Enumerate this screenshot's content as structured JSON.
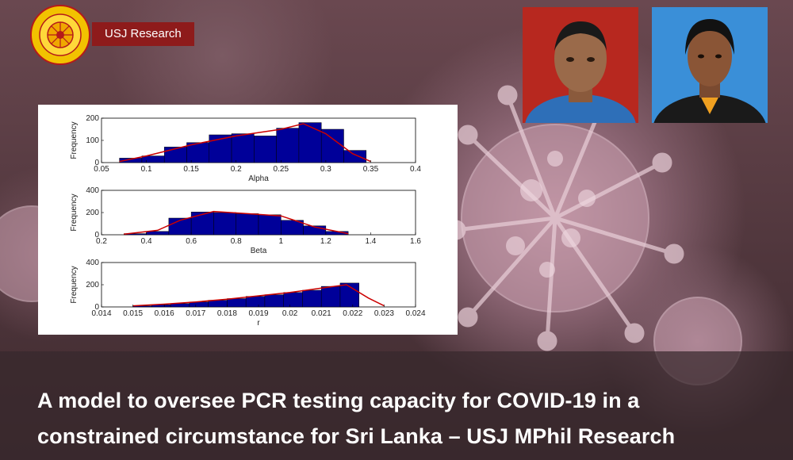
{
  "header": {
    "badge_label": "USJ Research"
  },
  "headline": {
    "line1": "A model to oversee PCR testing capacity for COVID-19 in a",
    "line2": "constrained circumstance for Sri Lanka – USJ MPhil Research"
  },
  "colors": {
    "badge_bg": "#8e1b1b",
    "bar_fill": "#000099",
    "fit_line": "#cc0000"
  },
  "chart_data": [
    {
      "type": "bar",
      "xlabel": "Alpha",
      "ylabel": "Frequency",
      "xlim": [
        0.05,
        0.4
      ],
      "ylim": [
        0,
        200
      ],
      "xticks": [
        "0.05",
        "0.1",
        "0.15",
        "0.2",
        "0.25",
        "0.3",
        "0.35",
        "0.4"
      ],
      "yticks": [
        "0",
        "100",
        "200"
      ],
      "x": [
        0.0825,
        0.1075,
        0.1325,
        0.1575,
        0.1825,
        0.2075,
        0.2325,
        0.2575,
        0.2825,
        0.3075,
        0.3325
      ],
      "values": [
        20,
        30,
        70,
        90,
        125,
        130,
        120,
        155,
        180,
        150,
        55
      ],
      "fit": {
        "x": [
          0.07,
          0.1,
          0.15,
          0.2,
          0.25,
          0.275,
          0.3,
          0.33,
          0.35
        ],
        "y": [
          5,
          30,
          80,
          120,
          150,
          175,
          130,
          40,
          5
        ]
      }
    },
    {
      "type": "bar",
      "xlabel": "Beta",
      "ylabel": "Frequency",
      "xlim": [
        0.2,
        1.6
      ],
      "ylim": [
        0,
        400
      ],
      "xticks": [
        "0.2",
        "0.4",
        "0.6",
        "0.8",
        "1",
        "1.2",
        "1.4",
        "1.6"
      ],
      "yticks": [
        "0",
        "200",
        "400"
      ],
      "x": [
        0.35,
        0.45,
        0.55,
        0.65,
        0.75,
        0.85,
        0.95,
        1.05,
        1.15,
        1.25
      ],
      "values": [
        10,
        30,
        150,
        205,
        200,
        190,
        180,
        130,
        80,
        30
      ],
      "fit": {
        "x": [
          0.3,
          0.45,
          0.55,
          0.7,
          0.85,
          1.0,
          1.15,
          1.3
        ],
        "y": [
          5,
          40,
          130,
          210,
          190,
          170,
          70,
          10
        ]
      }
    },
    {
      "type": "bar",
      "xlabel": "r",
      "ylabel": "Frequency",
      "xlim": [
        0.014,
        0.024
      ],
      "ylim": [
        0,
        400
      ],
      "xticks": [
        "0.014",
        "0.015",
        "0.016",
        "0.017",
        "0.018",
        "0.019",
        "0.02",
        "0.021",
        "0.022",
        "0.023",
        "0.024"
      ],
      "yticks": [
        "0",
        "200",
        "400"
      ],
      "x": [
        0.0153,
        0.0159,
        0.0165,
        0.0171,
        0.0177,
        0.0183,
        0.0189,
        0.0195,
        0.0201,
        0.0207,
        0.0213,
        0.0219
      ],
      "values": [
        10,
        20,
        30,
        45,
        60,
        75,
        95,
        110,
        130,
        150,
        185,
        215
      ],
      "fit": {
        "x": [
          0.015,
          0.016,
          0.017,
          0.018,
          0.019,
          0.02,
          0.021,
          0.0218,
          0.0225,
          0.023
        ],
        "y": [
          10,
          25,
          45,
          70,
          100,
          130,
          170,
          200,
          80,
          10
        ]
      }
    }
  ]
}
